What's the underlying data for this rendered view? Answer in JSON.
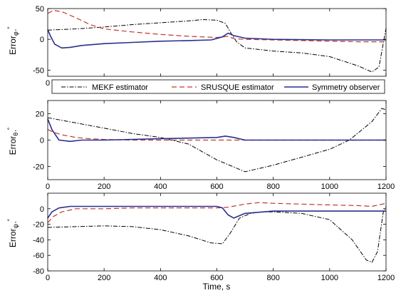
{
  "legend": {
    "items": [
      {
        "label": "MEKF estimator",
        "series": "mekf"
      },
      {
        "label": "SRUSQUE estimator",
        "series": "srusque"
      },
      {
        "label": "Symmetry observer",
        "series": "symmetry"
      }
    ]
  },
  "colors": {
    "mekf": "#000000",
    "srusque": "#c0392b",
    "symmetry": "#2a2f8f"
  },
  "chart_data": [
    {
      "type": "line",
      "ylabel_main": "Error",
      "ylabel_sub": "φ",
      "ylabel_unit": "°",
      "xlim": [
        0,
        1200
      ],
      "ylim": [
        -60,
        50
      ],
      "yticks": [
        50,
        0,
        -50
      ],
      "xticks": [
        0
      ],
      "xtick_labels_visible": [
        0
      ],
      "grid": false,
      "series": [
        {
          "key": "mekf",
          "x": [
            0,
            100,
            200,
            300,
            400,
            500,
            550,
            600,
            630,
            650,
            670,
            700,
            800,
            900,
            1000,
            1100,
            1150,
            1175,
            1200
          ],
          "y": [
            15,
            17,
            20,
            24,
            27,
            30,
            32,
            31,
            26,
            10,
            -4,
            -14,
            -19,
            -22,
            -28,
            -43,
            -53,
            -45,
            18
          ]
        },
        {
          "key": "srusque",
          "x": [
            0,
            20,
            50,
            100,
            150,
            200,
            300,
            400,
            500,
            600,
            620,
            640,
            660,
            700,
            800,
            900,
            1000,
            1100,
            1200
          ],
          "y": [
            42,
            47,
            45,
            35,
            24,
            17,
            12,
            8,
            5,
            3,
            4,
            5,
            1,
            0,
            -1,
            -2,
            -3,
            -4,
            -4
          ]
        },
        {
          "key": "symmetry",
          "x": [
            0,
            10,
            25,
            50,
            80,
            120,
            200,
            300,
            400,
            500,
            580,
            620,
            640,
            660,
            700,
            800,
            1000,
            1200
          ],
          "y": [
            16,
            5,
            -8,
            -14,
            -13,
            -10,
            -7,
            -5,
            -3,
            -2,
            -1,
            4,
            10,
            6,
            2,
            0,
            -1,
            -1
          ]
        }
      ]
    },
    {
      "type": "line",
      "ylabel_main": "Error",
      "ylabel_sub": "θ",
      "ylabel_unit": "°",
      "xlim": [
        0,
        1200
      ],
      "ylim": [
        -30,
        30
      ],
      "yticks": [
        20,
        0,
        -20
      ],
      "xticks": [
        0,
        200,
        400,
        600,
        800,
        1000,
        1200
      ],
      "xtick_labels_visible": [
        0,
        200,
        400,
        600,
        800,
        1000,
        1200
      ],
      "grid": false,
      "series": [
        {
          "key": "mekf",
          "x": [
            0,
            100,
            200,
            300,
            400,
            500,
            600,
            700,
            800,
            900,
            1000,
            1070,
            1150,
            1185,
            1200
          ],
          "y": [
            17,
            13,
            9,
            5,
            2,
            -3,
            -15,
            -24,
            -19,
            -13,
            -7,
            0,
            14,
            24,
            23
          ]
        },
        {
          "key": "srusque",
          "x": [
            0,
            20,
            50,
            100,
            150,
            200,
            300,
            400,
            500,
            600,
            700,
            800,
            1000,
            1200
          ],
          "y": [
            8,
            6,
            4,
            2,
            1,
            0.5,
            0,
            0,
            0,
            0,
            0,
            0,
            0,
            0
          ]
        },
        {
          "key": "symmetry",
          "x": [
            0,
            15,
            40,
            80,
            120,
            200,
            400,
            600,
            630,
            660,
            700,
            800,
            1000,
            1200
          ],
          "y": [
            16,
            8,
            0,
            -1,
            0,
            0,
            1,
            2,
            3,
            2,
            0,
            0,
            0,
            0
          ]
        }
      ]
    },
    {
      "type": "line",
      "ylabel_main": "Error",
      "ylabel_sub": "ψ",
      "ylabel_unit": "°",
      "xlim": [
        0,
        1200
      ],
      "ylim": [
        -80,
        20
      ],
      "yticks": [
        0,
        -20,
        -40,
        -60,
        -80
      ],
      "xticks": [
        0,
        200,
        400,
        600,
        800,
        1000,
        1200
      ],
      "xtick_labels_visible": [
        0,
        200,
        400,
        600,
        800,
        1000,
        1200
      ],
      "xlabel": "Time, s",
      "grid": false,
      "series": [
        {
          "key": "mekf",
          "x": [
            0,
            100,
            200,
            300,
            400,
            500,
            580,
            620,
            650,
            680,
            720,
            760,
            800,
            900,
            1000,
            1080,
            1130,
            1150,
            1170,
            1190,
            1200
          ],
          "y": [
            -24,
            -23,
            -22,
            -23,
            -27,
            -35,
            -44,
            -45,
            -30,
            -12,
            -6,
            -4,
            -4,
            -6,
            -14,
            -40,
            -66,
            -69,
            -55,
            -5,
            3
          ]
        },
        {
          "key": "srusque",
          "x": [
            0,
            20,
            50,
            100,
            200,
            300,
            400,
            500,
            600,
            640,
            700,
            750,
            800,
            900,
            1000,
            1100,
            1150,
            1200
          ],
          "y": [
            -18,
            -10,
            -4,
            0,
            0,
            1,
            1,
            1,
            1,
            2,
            6,
            8,
            7,
            6,
            5,
            4,
            3,
            7
          ]
        },
        {
          "key": "symmetry",
          "x": [
            0,
            15,
            40,
            80,
            150,
            300,
            500,
            600,
            620,
            640,
            660,
            700,
            800,
            1000,
            1200
          ],
          "y": [
            -12,
            -4,
            1,
            3,
            3,
            3,
            3,
            3,
            1,
            -8,
            -12,
            -6,
            -3,
            -3,
            -3
          ]
        }
      ]
    }
  ]
}
